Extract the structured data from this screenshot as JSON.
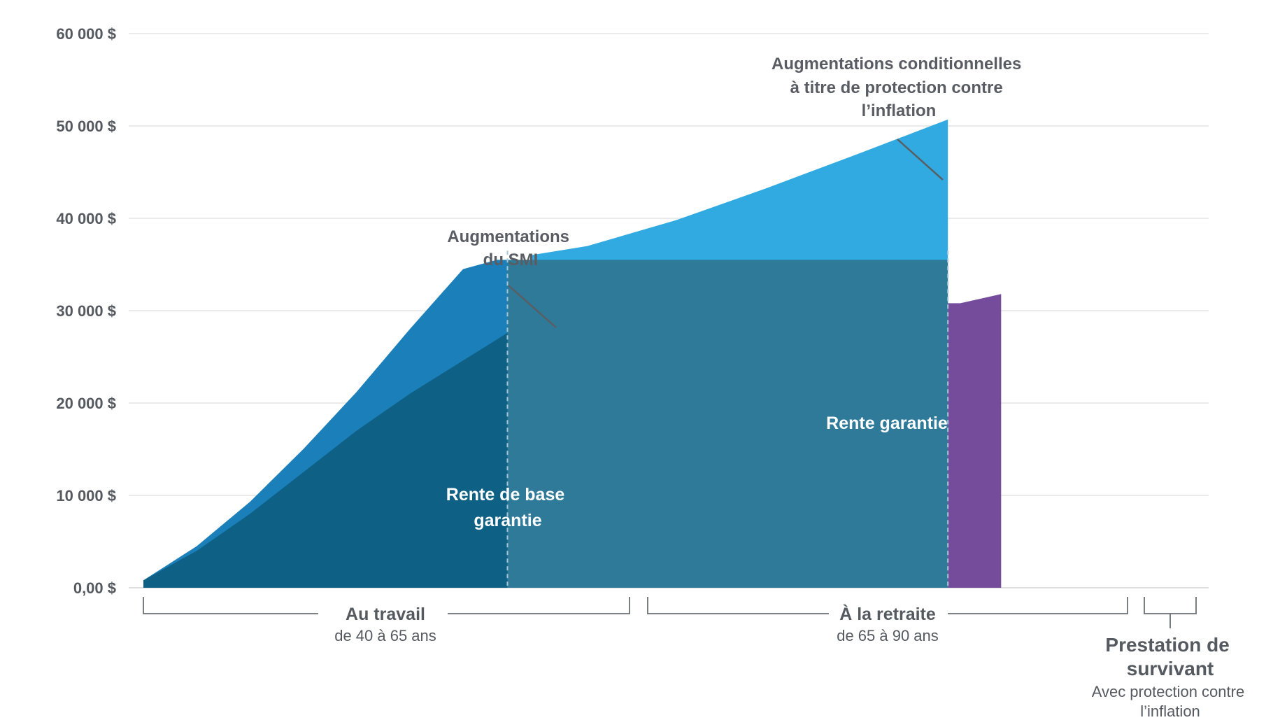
{
  "chart_data": {
    "type": "area",
    "currency_unit": "$",
    "ylim": [
      0,
      60000
    ],
    "y_ticks": [
      {
        "value": 0,
        "label": "0,00 $"
      },
      {
        "value": 10000,
        "label": "10 000 $"
      },
      {
        "value": 20000,
        "label": "20 000 $"
      },
      {
        "value": 30000,
        "label": "30 000 $"
      },
      {
        "value": 40000,
        "label": "40 000 $"
      },
      {
        "value": 50000,
        "label": "50 000 $"
      },
      {
        "value": 60000,
        "label": "60 000 $"
      }
    ],
    "xlim": [
      40,
      95
    ],
    "grid": true,
    "series": [
      {
        "name": "Rente de base garantie",
        "color": "#0e6085",
        "points": [
          [
            40,
            800
          ],
          [
            43,
            4000
          ],
          [
            46,
            8000
          ],
          [
            49,
            12500
          ],
          [
            52,
            17000
          ],
          [
            55,
            21000
          ],
          [
            58,
            24600
          ],
          [
            60.5,
            27600
          ]
        ]
      },
      {
        "name": "Augmentations du SMI",
        "color": "#1b7fba",
        "points": [
          [
            40,
            800
          ],
          [
            43,
            4500
          ],
          [
            46,
            9300
          ],
          [
            49,
            15000
          ],
          [
            52,
            21200
          ],
          [
            55,
            28000
          ],
          [
            58,
            34500
          ],
          [
            59.9,
            35500
          ],
          [
            60.5,
            35500
          ]
        ]
      },
      {
        "name": "Rente garantie",
        "color": "#2e7a98",
        "points": [
          [
            60.5,
            35500
          ],
          [
            85.3,
            35500
          ]
        ]
      },
      {
        "name": "Augmentations conditionnelles à titre de protection contre l’inflation",
        "color": "#30aae0",
        "points": [
          [
            61.8,
            36000
          ],
          [
            65,
            37000
          ],
          [
            70,
            39800
          ],
          [
            75,
            43200
          ],
          [
            80,
            46800
          ],
          [
            85.3,
            50700
          ]
        ]
      },
      {
        "name": "Prestation de survivant",
        "color": "#754c9b",
        "points": [
          [
            85.3,
            30800
          ],
          [
            86,
            30800
          ],
          [
            88.3,
            31800
          ]
        ]
      }
    ],
    "annotations": {
      "smi": [
        "Augmentations",
        "du SMI"
      ],
      "inflation": [
        "Augmentations conditionnelles",
        "à  titre de protection contre",
        "l’inflation"
      ],
      "base": [
        "Rente de base",
        "garantie"
      ],
      "guaranteed": "Rente garantie"
    },
    "phases": {
      "work": {
        "title": "Au travail",
        "subtitle": "de 40 à 65 ans"
      },
      "retire": {
        "title": "À la retraite",
        "subtitle": "de 65 à 90 ans"
      },
      "survivor": {
        "title_lines": [
          "Prestation de",
          "survivant"
        ],
        "subtitle_lines": [
          "Avec protection contre",
          "l’inflation"
        ]
      }
    }
  }
}
